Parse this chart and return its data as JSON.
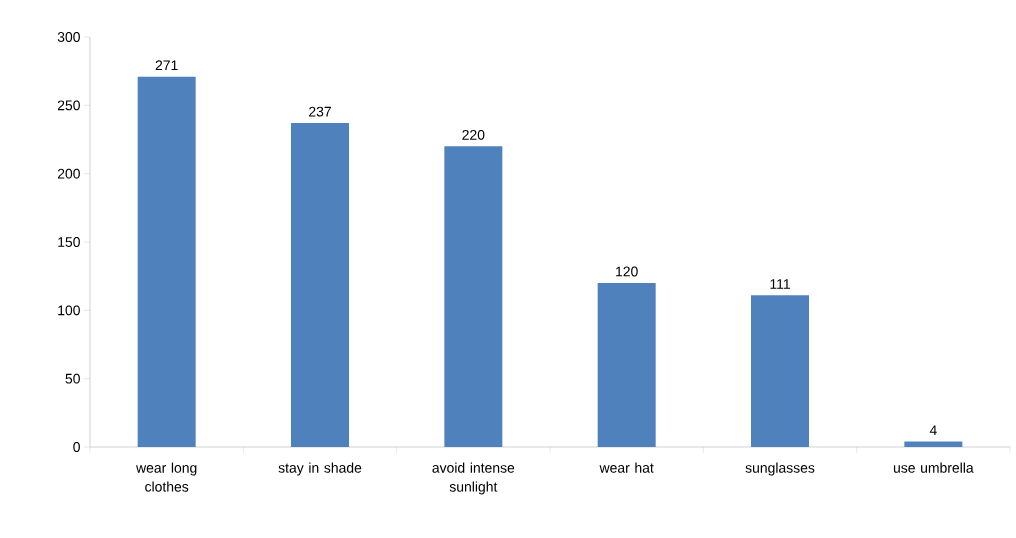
{
  "chart_data": {
    "type": "bar",
    "categories": [
      "wear long clothes",
      "stay in shade",
      "avoid intense sunlight",
      "wear hat",
      "sunglasses",
      "use umbrella"
    ],
    "values": [
      271,
      237,
      220,
      120,
      111,
      4
    ],
    "color": "#4f81bd",
    "ylim": [
      0,
      300
    ],
    "yticks": [
      0,
      50,
      100,
      150,
      200,
      250,
      300
    ],
    "data_labels": true,
    "grid": false
  }
}
